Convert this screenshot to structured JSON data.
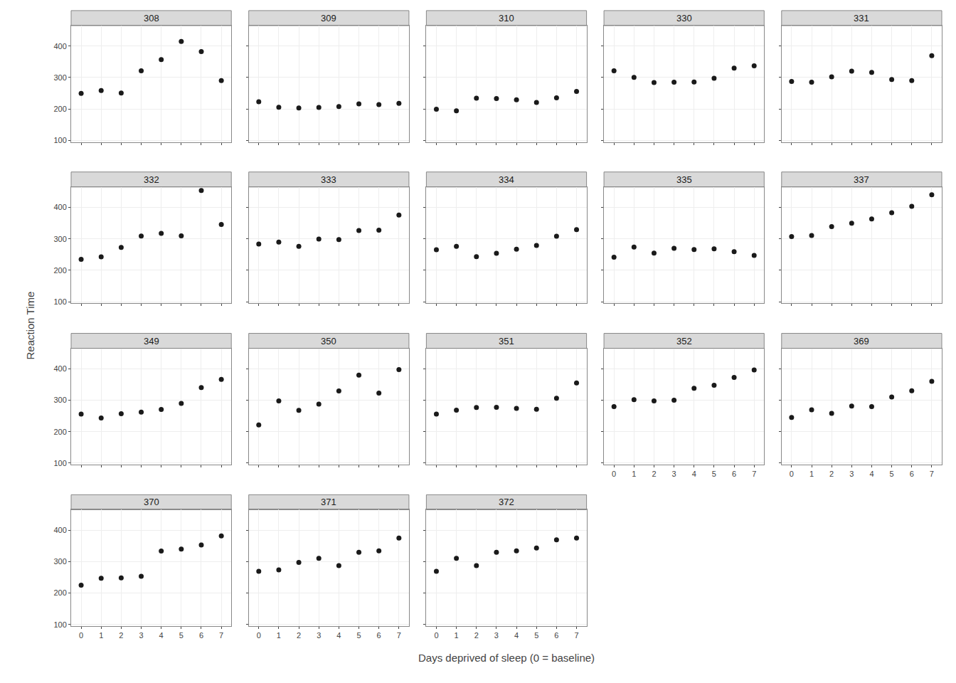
{
  "chart_data": {
    "type": "scatter",
    "xlabel": "Days deprived of sleep (0 = baseline)",
    "ylabel": "Reaction Time",
    "x": [
      0,
      1,
      2,
      3,
      4,
      5,
      6,
      7
    ],
    "series": [
      {
        "name": "308",
        "values": [
          249.56,
          258.7,
          250.8,
          321.44,
          356.85,
          414.69,
          382.2,
          290.15
        ]
      },
      {
        "name": "309",
        "values": [
          222.73,
          205.27,
          202.98,
          204.7,
          207.72,
          215.96,
          213.63,
          217.73
        ]
      },
      {
        "name": "310",
        "values": [
          199.05,
          194.33,
          234.32,
          232.84,
          229.31,
          220.46,
          235.43,
          255.75
        ]
      },
      {
        "name": "330",
        "values": [
          321.54,
          300.4,
          283.86,
          285.13,
          285.84,
          297.6,
          329.61,
          337.12
        ]
      },
      {
        "name": "331",
        "values": [
          287.61,
          285.0,
          301.97,
          320.12,
          316.27,
          293.34,
          290.46,
          369.42
        ]
      },
      {
        "name": "332",
        "values": [
          234.86,
          242.81,
          272.96,
          309.09,
          317.42,
          309.49,
          454.12,
          346.01
        ]
      },
      {
        "name": "333",
        "values": [
          283.86,
          289.55,
          276.2,
          299.42,
          297.61,
          326.32,
          327.48,
          376.03
        ]
      },
      {
        "name": "334",
        "values": [
          265.4,
          276.26,
          243.52,
          254.11,
          267.41,
          279.26,
          308.46,
          329.65
        ]
      },
      {
        "name": "335",
        "values": [
          241.61,
          273.95,
          254.55,
          270.31,
          266.0,
          268.12,
          259.27,
          247.51
        ]
      },
      {
        "name": "337",
        "values": [
          307.24,
          310.63,
          339.29,
          349.81,
          363.14,
          383.35,
          403.52,
          440.51
        ]
      },
      {
        "name": "349",
        "values": [
          256.23,
          243.4,
          256.92,
          262.12,
          270.91,
          290.16,
          340.2,
          366.13
        ]
      },
      {
        "name": "350",
        "values": [
          221.68,
          298.11,
          268.12,
          287.48,
          329.61,
          380.02,
          323.0,
          397.45
        ]
      },
      {
        "name": "351",
        "values": [
          255.99,
          268.49,
          276.74,
          277.43,
          274.17,
          271.44,
          306.27,
          355.04
        ]
      },
      {
        "name": "352",
        "values": [
          279.78,
          301.97,
          297.83,
          300.11,
          337.87,
          347.47,
          372.37,
          396.06
        ]
      },
      {
        "name": "369",
        "values": [
          245.24,
          269.84,
          258.26,
          281.6,
          279.57,
          310.16,
          330.17,
          360.08
        ]
      },
      {
        "name": "370",
        "values": [
          225.0,
          247.26,
          248.29,
          253.48,
          333.74,
          340.09,
          352.66,
          381.86
        ]
      },
      {
        "name": "371",
        "values": [
          269.41,
          273.47,
          297.6,
          310.63,
          287.17,
          329.61,
          334.48,
          375.07
        ]
      },
      {
        "name": "372",
        "values": [
          269.49,
          310.63,
          287.17,
          329.61,
          334.48,
          343.22,
          369.14,
          375.07
        ]
      }
    ],
    "xlim": [
      -0.5,
      7.5
    ],
    "xticks": [
      0,
      1,
      2,
      3,
      4,
      5,
      6,
      7
    ],
    "ylim": [
      95,
      465
    ],
    "yticks": [
      100,
      200,
      300,
      400
    ],
    "grid": true,
    "color": "#1a1a1a"
  }
}
